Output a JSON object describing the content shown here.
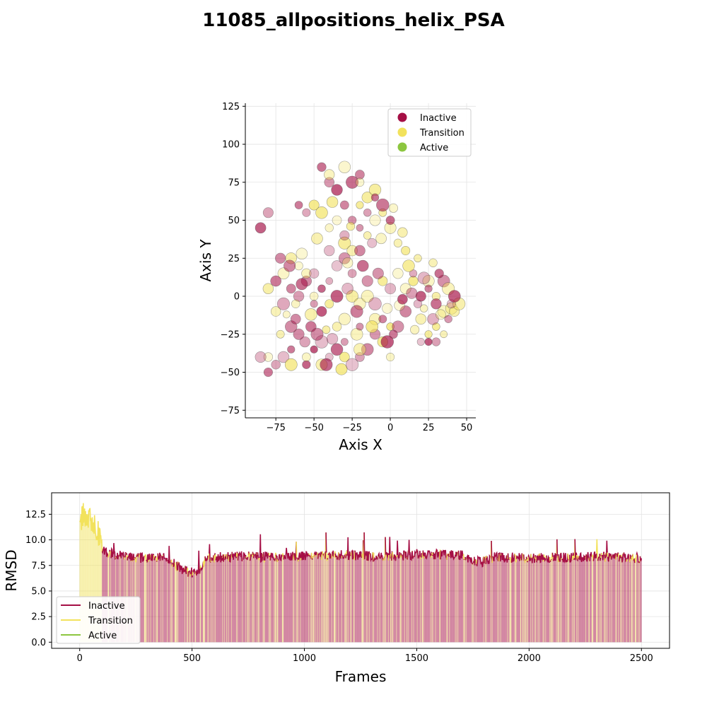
{
  "figure": {
    "title": "11085_allpositions_helix_PSA"
  },
  "colors": {
    "inactive": "#a50f45",
    "transition": "#f2e25c",
    "active": "#8cc63f"
  },
  "chart_data": [
    {
      "type": "scatter",
      "xlabel": "Axis X",
      "ylabel": "Axis Y",
      "xlim": [
        -95,
        56
      ],
      "ylim": [
        -80,
        127
      ],
      "xticks": [
        -75,
        -50,
        -25,
        0,
        25,
        50
      ],
      "yticks": [
        -75,
        -50,
        -25,
        0,
        25,
        50,
        75,
        100,
        125
      ],
      "xtick_labels": [
        "−75",
        "−50",
        "−25",
        "0",
        "25",
        "50"
      ],
      "ytick_labels": [
        "−75",
        "−50",
        "−25",
        "0",
        "25",
        "50",
        "75",
        "100",
        "125"
      ],
      "grid": true,
      "legend": {
        "position": "top-right",
        "entries": [
          "Inactive",
          "Transition",
          "Active"
        ]
      },
      "series": [
        {
          "name": "Inactive",
          "color": "#a50f45",
          "points": [
            [
              -56,
              -30
            ],
            [
              -60,
              -25
            ],
            [
              -50,
              -35
            ],
            [
              -45,
              -30
            ],
            [
              -65,
              -35
            ],
            [
              -70,
              -40
            ],
            [
              -55,
              -45
            ],
            [
              -40,
              -40
            ],
            [
              -35,
              -35
            ],
            [
              -30,
              -30
            ],
            [
              -20,
              -40
            ],
            [
              -15,
              -35
            ],
            [
              -10,
              -25
            ],
            [
              -60,
              0
            ],
            [
              -65,
              5
            ],
            [
              -55,
              10
            ],
            [
              -50,
              15
            ],
            [
              -45,
              5
            ],
            [
              -70,
              -5
            ],
            [
              -75,
              10
            ],
            [
              -35,
              20
            ],
            [
              -30,
              25
            ],
            [
              -25,
              15
            ],
            [
              -40,
              30
            ],
            [
              -30,
              40
            ],
            [
              -25,
              50
            ],
            [
              -20,
              45
            ],
            [
              -30,
              60
            ],
            [
              -35,
              70
            ],
            [
              -40,
              75
            ],
            [
              -25,
              75
            ],
            [
              -20,
              80
            ],
            [
              -45,
              85
            ],
            [
              -55,
              55
            ],
            [
              -60,
              60
            ],
            [
              -80,
              55
            ],
            [
              -85,
              45
            ],
            [
              -85,
              -40
            ],
            [
              -80,
              -50
            ],
            [
              -75,
              -45
            ],
            [
              20,
              0
            ],
            [
              25,
              5
            ],
            [
              30,
              -5
            ],
            [
              35,
              10
            ],
            [
              28,
              -15
            ],
            [
              15,
              15
            ],
            [
              10,
              -10
            ],
            [
              5,
              -20
            ],
            [
              -5,
              -15
            ],
            [
              0,
              5
            ],
            [
              -10,
              -5
            ],
            [
              -15,
              10
            ],
            [
              20,
              -30
            ],
            [
              25,
              -30
            ],
            [
              30,
              -30
            ],
            [
              -5,
              60
            ],
            [
              0,
              50
            ],
            [
              -10,
              65
            ],
            [
              -15,
              55
            ],
            [
              -20,
              30
            ],
            [
              -65,
              -20
            ],
            [
              -62,
              -15
            ],
            [
              -52,
              -20
            ],
            [
              -48,
              -25
            ],
            [
              -42,
              -45
            ],
            [
              -38,
              -28
            ],
            [
              -25,
              -45
            ],
            [
              -20,
              -20
            ],
            [
              -50,
              -5
            ],
            [
              -58,
              8
            ],
            [
              -66,
              20
            ],
            [
              -72,
              25
            ],
            [
              -40,
              10
            ],
            [
              -45,
              -10
            ],
            [
              -35,
              0
            ],
            [
              -28,
              5
            ],
            [
              -22,
              -10
            ],
            [
              -18,
              20
            ],
            [
              -12,
              35
            ],
            [
              -8,
              15
            ],
            [
              40,
              -5
            ],
            [
              42,
              0
            ],
            [
              38,
              -15
            ],
            [
              32,
              15
            ],
            [
              22,
              12
            ],
            [
              18,
              -5
            ],
            [
              14,
              2
            ],
            [
              8,
              -2
            ],
            [
              2,
              -25
            ],
            [
              -2,
              -30
            ]
          ]
        },
        {
          "name": "Transition",
          "color": "#f2e25c",
          "points": [
            [
              -50,
              60
            ],
            [
              -45,
              55
            ],
            [
              -40,
              45
            ],
            [
              -35,
              50
            ],
            [
              -30,
              35
            ],
            [
              -25,
              30
            ],
            [
              -20,
              60
            ],
            [
              -15,
              65
            ],
            [
              -10,
              70
            ],
            [
              -5,
              55
            ],
            [
              0,
              45
            ],
            [
              5,
              35
            ],
            [
              10,
              30
            ],
            [
              -65,
              25
            ],
            [
              -60,
              20
            ],
            [
              -55,
              15
            ],
            [
              -70,
              15
            ],
            [
              -80,
              5
            ],
            [
              -75,
              -10
            ],
            [
              -50,
              0
            ],
            [
              -40,
              -5
            ],
            [
              -35,
              -20
            ],
            [
              -30,
              -15
            ],
            [
              -25,
              0
            ],
            [
              -20,
              -5
            ],
            [
              -10,
              -15
            ],
            [
              0,
              -20
            ],
            [
              -5,
              -30
            ],
            [
              -55,
              -40
            ],
            [
              -45,
              -45
            ],
            [
              -30,
              -40
            ],
            [
              -20,
              -35
            ],
            [
              -65,
              -45
            ],
            [
              -80,
              -40
            ],
            [
              25,
              10
            ],
            [
              30,
              0
            ],
            [
              35,
              -10
            ],
            [
              40,
              -8
            ],
            [
              30,
              -20
            ],
            [
              20,
              -15
            ],
            [
              15,
              10
            ],
            [
              10,
              5
            ],
            [
              5,
              15
            ],
            [
              -5,
              10
            ],
            [
              -15,
              0
            ],
            [
              25,
              -25
            ],
            [
              35,
              -25
            ],
            [
              0,
              -40
            ],
            [
              -40,
              80
            ],
            [
              -30,
              85
            ],
            [
              -20,
              75
            ],
            [
              -10,
              50
            ],
            [
              -15,
              40
            ],
            [
              2,
              58
            ],
            [
              8,
              42
            ],
            [
              -28,
              22
            ],
            [
              -48,
              38
            ],
            [
              -58,
              28
            ],
            [
              -62,
              -5
            ],
            [
              -52,
              -12
            ],
            [
              -42,
              -22
            ],
            [
              -32,
              -48
            ],
            [
              -22,
              -25
            ],
            [
              -12,
              -20
            ],
            [
              -2,
              -8
            ],
            [
              6,
              -6
            ],
            [
              12,
              20
            ],
            [
              18,
              25
            ],
            [
              28,
              22
            ],
            [
              38,
              5
            ],
            [
              33,
              -12
            ],
            [
              22,
              -8
            ],
            [
              16,
              -22
            ],
            [
              42,
              -10
            ],
            [
              45,
              -5
            ],
            [
              -72,
              -25
            ],
            [
              -68,
              -12
            ],
            [
              -38,
              62
            ],
            [
              -26,
              46
            ],
            [
              -6,
              38
            ]
          ]
        }
      ]
    },
    {
      "type": "line",
      "xlabel": "Frames",
      "ylabel": "RMSD",
      "xlim": [
        -125,
        2625
      ],
      "ylim": [
        -0.6,
        14.6
      ],
      "xticks": [
        0,
        500,
        1000,
        1500,
        2000,
        2500
      ],
      "yticks": [
        0.0,
        2.5,
        5.0,
        7.5,
        10.0,
        12.5
      ],
      "xtick_labels": [
        "0",
        "500",
        "1000",
        "1500",
        "2000",
        "2500"
      ],
      "ytick_labels": [
        "0.0",
        "2.5",
        "5.0",
        "7.5",
        "10.0",
        "12.5"
      ],
      "grid": true,
      "legend": {
        "position": "lower-left",
        "entries": [
          "Inactive",
          "Transition",
          "Active"
        ]
      },
      "frame_count": 2500,
      "initial_frames_transition_to": 100,
      "profile": [
        [
          0,
          11.5
        ],
        [
          20,
          12.5
        ],
        [
          40,
          12.0
        ],
        [
          60,
          11.8
        ],
        [
          80,
          11.0
        ],
        [
          100,
          9.0
        ],
        [
          150,
          8.6
        ],
        [
          200,
          8.5
        ],
        [
          250,
          8.3
        ],
        [
          300,
          8.2
        ],
        [
          350,
          8.4
        ],
        [
          400,
          8.0
        ],
        [
          430,
          7.5
        ],
        [
          460,
          7.0
        ],
        [
          500,
          6.8
        ],
        [
          540,
          7.1
        ],
        [
          560,
          8.2
        ],
        [
          700,
          8.4
        ],
        [
          900,
          8.3
        ],
        [
          1000,
          8.4
        ],
        [
          1200,
          8.5
        ],
        [
          1350,
          8.3
        ],
        [
          1500,
          8.6
        ],
        [
          1700,
          8.5
        ],
        [
          1780,
          7.8
        ],
        [
          1850,
          8.3
        ],
        [
          2000,
          8.2
        ],
        [
          2200,
          8.3
        ],
        [
          2300,
          8.4
        ],
        [
          2500,
          8.2
        ]
      ],
      "series": [
        {
          "name": "Inactive",
          "color": "#a50f45"
        },
        {
          "name": "Transition",
          "color": "#f2e25c"
        },
        {
          "name": "Active",
          "color": "#8cc63f"
        }
      ]
    }
  ]
}
